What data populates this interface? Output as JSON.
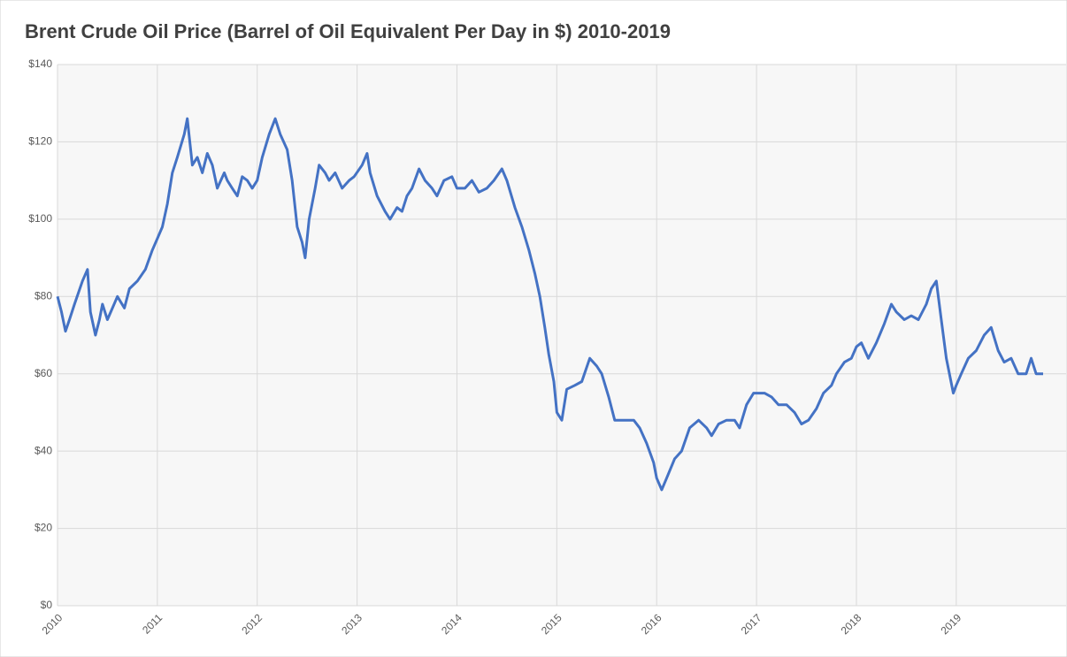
{
  "chart_data": {
    "type": "line",
    "title": "Brent Crude Oil Price (Barrel of Oil Equivalent Per Day in $) 2010-2019",
    "x": [
      2010.0,
      2010.04,
      2010.08,
      2010.12,
      2010.17,
      2010.25,
      2010.3,
      2010.33,
      2010.38,
      2010.42,
      2010.45,
      2010.5,
      2010.55,
      2010.6,
      2010.67,
      2010.72,
      2010.8,
      2010.88,
      2010.95,
      2011.0,
      2011.05,
      2011.1,
      2011.15,
      2011.2,
      2011.27,
      2011.3,
      2011.35,
      2011.4,
      2011.45,
      2011.5,
      2011.55,
      2011.6,
      2011.67,
      2011.7,
      2011.75,
      2011.8,
      2011.85,
      2011.9,
      2011.95,
      2012.0,
      2012.05,
      2012.12,
      2012.18,
      2012.23,
      2012.3,
      2012.35,
      2012.4,
      2012.45,
      2012.48,
      2012.52,
      2012.58,
      2012.62,
      2012.68,
      2012.72,
      2012.78,
      2012.85,
      2012.92,
      2012.97,
      2013.05,
      2013.1,
      2013.13,
      2013.2,
      2013.28,
      2013.33,
      2013.4,
      2013.45,
      2013.5,
      2013.55,
      2013.62,
      2013.68,
      2013.75,
      2013.8,
      2013.87,
      2013.95,
      2014.0,
      2014.08,
      2014.15,
      2014.22,
      2014.3,
      2014.37,
      2014.45,
      2014.5,
      2014.58,
      2014.65,
      2014.72,
      2014.78,
      2014.83,
      2014.88,
      2014.92,
      2014.97,
      2015.0,
      2015.05,
      2015.1,
      2015.18,
      2015.25,
      2015.33,
      2015.4,
      2015.45,
      2015.52,
      2015.58,
      2015.65,
      2015.7,
      2015.77,
      2015.83,
      2015.9,
      2015.97,
      2016.0,
      2016.05,
      2016.1,
      2016.18,
      2016.25,
      2016.33,
      2016.42,
      2016.5,
      2016.55,
      2016.62,
      2016.7,
      2016.78,
      2016.83,
      2016.9,
      2016.97,
      2017.0,
      2017.08,
      2017.15,
      2017.22,
      2017.3,
      2017.38,
      2017.45,
      2017.52,
      2017.6,
      2017.67,
      2017.75,
      2017.8,
      2017.88,
      2017.95,
      2018.0,
      2018.05,
      2018.12,
      2018.2,
      2018.28,
      2018.35,
      2018.4,
      2018.48,
      2018.55,
      2018.62,
      2018.7,
      2018.75,
      2018.8,
      2018.85,
      2018.9,
      2018.97,
      2019.0,
      2019.05,
      2019.12,
      2019.2,
      2019.28,
      2019.35,
      2019.42,
      2019.48,
      2019.55,
      2019.62,
      2019.7,
      2019.75,
      2019.8,
      2019.87
    ],
    "series": [
      {
        "name": "Brent",
        "color": "#4472c4",
        "values": [
          80,
          76,
          71,
          74,
          78,
          84,
          87,
          76,
          70,
          74,
          78,
          74,
          77,
          80,
          77,
          82,
          84,
          87,
          92,
          95,
          98,
          104,
          112,
          116,
          122,
          126,
          114,
          116,
          112,
          117,
          114,
          108,
          112,
          110,
          108,
          106,
          111,
          110,
          108,
          110,
          116,
          122,
          126,
          122,
          118,
          110,
          98,
          94,
          90,
          100,
          108,
          114,
          112,
          110,
          112,
          108,
          110,
          111,
          114,
          117,
          112,
          106,
          102,
          100,
          103,
          102,
          106,
          108,
          113,
          110,
          108,
          106,
          110,
          111,
          108,
          108,
          110,
          107,
          108,
          110,
          113,
          110,
          103,
          98,
          92,
          86,
          80,
          72,
          65,
          58,
          50,
          48,
          56,
          57,
          58,
          64,
          62,
          60,
          54,
          48,
          48,
          48,
          48,
          46,
          42,
          37,
          33,
          30,
          33,
          38,
          40,
          46,
          48,
          46,
          44,
          47,
          48,
          48,
          46,
          52,
          55,
          55,
          55,
          54,
          52,
          52,
          50,
          47,
          48,
          51,
          55,
          57,
          60,
          63,
          64,
          67,
          68,
          64,
          68,
          73,
          78,
          76,
          74,
          75,
          74,
          78,
          82,
          84,
          74,
          64,
          55,
          57,
          60,
          64,
          66,
          70,
          72,
          66,
          63,
          64,
          60,
          60,
          64,
          60,
          60
        ]
      }
    ],
    "xlim": [
      2010,
      2020.1
    ],
    "xticks": [
      2010,
      2011,
      2012,
      2013,
      2014,
      2015,
      2016,
      2017,
      2018,
      2019
    ],
    "ylim": [
      0,
      140
    ],
    "yticks": [
      {
        "value": 0,
        "label": "$0"
      },
      {
        "value": 20,
        "label": "$20"
      },
      {
        "value": 40,
        "label": "$40"
      },
      {
        "value": 60,
        "label": "$60"
      },
      {
        "value": 80,
        "label": "$80"
      },
      {
        "value": 100,
        "label": "$100"
      },
      {
        "value": 120,
        "label": "$120"
      },
      {
        "value": 140,
        "label": "$140"
      }
    ],
    "grid": true
  }
}
